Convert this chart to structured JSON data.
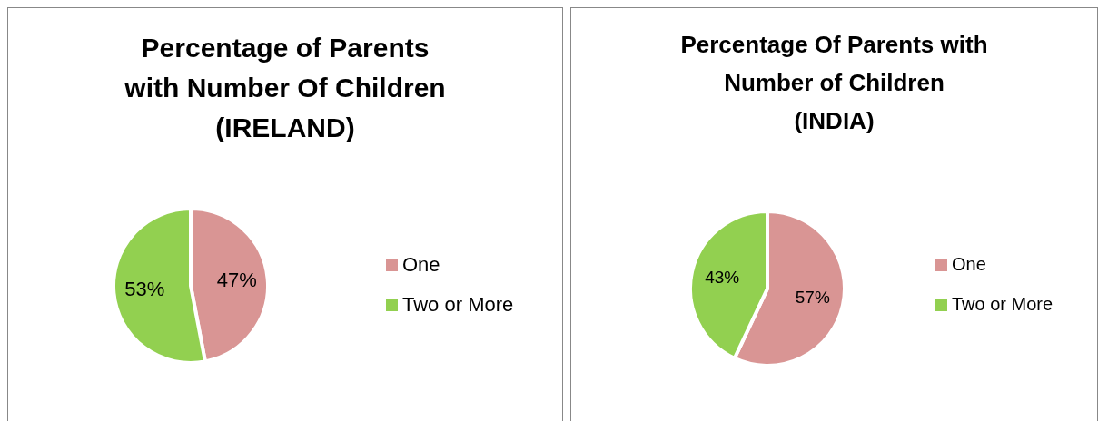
{
  "chart_data": [
    {
      "type": "pie",
      "title": "Percentage of Parents\nwith Number Of Children\n(IRELAND)",
      "categories": [
        "One",
        "Two or More"
      ],
      "values": [
        47,
        53
      ],
      "colors": [
        "#d99594",
        "#92d050"
      ],
      "value_labels": [
        "47%",
        "53%"
      ],
      "data_labels": true,
      "legend": "right"
    },
    {
      "type": "pie",
      "title": "Percentage Of Parents with\nNumber of Children\n(INDIA)",
      "categories": [
        "One",
        "Two or More"
      ],
      "values": [
        57,
        43
      ],
      "colors": [
        "#d99594",
        "#92d050"
      ],
      "value_labels": [
        "57%",
        "43%"
      ],
      "data_labels": true,
      "legend": "right"
    }
  ]
}
